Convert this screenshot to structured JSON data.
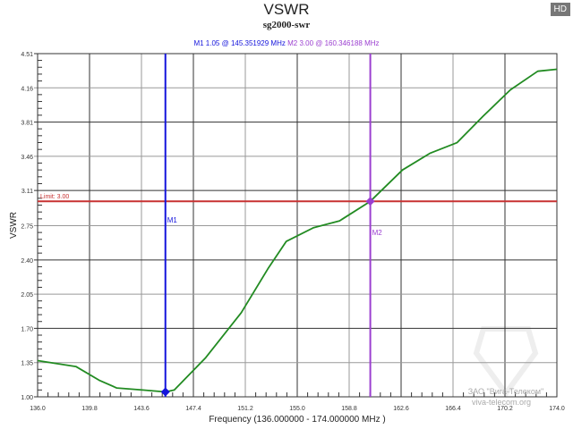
{
  "hd_badge": "HD",
  "chart_data": {
    "type": "line",
    "title": "VSWR",
    "subtitle": "sg2000-swr",
    "xlabel": "Frequency (136.000000 - 174.000000 MHz )",
    "ylabel": "VSWR",
    "xlim": [
      136.0,
      174.0
    ],
    "ylim": [
      1.0,
      4.51
    ],
    "xticks": [
      "136.0",
      "139.8",
      "143.6",
      "147.4",
      "151.2",
      "155.0",
      "158.8",
      "162.6",
      "166.4",
      "170.2",
      "174.0"
    ],
    "yticks": [
      "1.00",
      "1.35",
      "1.70",
      "2.05",
      "2.40",
      "2.75",
      "3.11",
      "3.46",
      "3.81",
      "4.16",
      "4.51"
    ],
    "grid": true,
    "series": [
      {
        "color": "#228b22",
        "x": [
          136.0,
          138.8,
          140.5,
          141.8,
          143.7,
          145.35,
          146.0,
          148.3,
          150.9,
          152.9,
          154.2,
          156.2,
          158.1,
          160.35,
          162.7,
          164.7,
          166.7,
          168.6,
          170.6,
          172.6,
          174.0
        ],
        "y": [
          1.37,
          1.31,
          1.17,
          1.09,
          1.07,
          1.05,
          1.07,
          1.4,
          1.86,
          2.32,
          2.59,
          2.73,
          2.8,
          3.0,
          3.32,
          3.49,
          3.6,
          3.87,
          4.14,
          4.33,
          4.35
        ]
      }
    ],
    "limit": {
      "label": "Limit: 3.00",
      "value": 3.0,
      "color": "#c83232"
    },
    "markers": [
      {
        "name": "M1",
        "readout": "M1   1.05 @ 145.351929 MHz",
        "x": 145.351929,
        "y": 1.05,
        "color": "#1414dc"
      },
      {
        "name": "M2",
        "readout": "M2   3.00 @ 160.346188 MHz",
        "x": 160.346188,
        "y": 3.0,
        "color": "#9b3fd0"
      }
    ]
  },
  "watermark": {
    "line1": "ЗАО \"Вига-Телеком\"",
    "line2": "viva-telecom.org"
  }
}
